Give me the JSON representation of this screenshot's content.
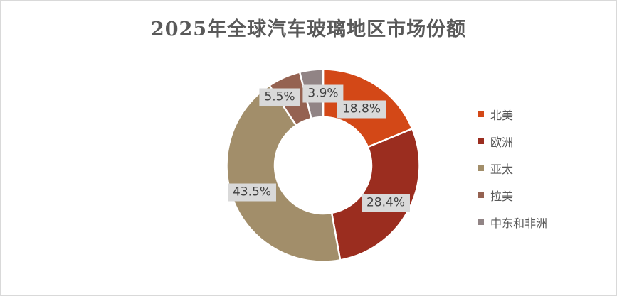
{
  "chart_data": {
    "type": "pie",
    "subtype": "donut",
    "title": "2025年全球汽车玻璃地区市场份额",
    "categories": [
      "北美",
      "欧洲",
      "亚太",
      "拉美",
      "中东和非洲"
    ],
    "values": [
      18.8,
      28.4,
      43.5,
      5.5,
      3.9
    ],
    "data_labels": [
      "18.8%",
      "28.4%",
      "43.5%",
      "5.5%",
      "3.9%"
    ],
    "colors": [
      "#D34817",
      "#9B2D1F",
      "#A28E6A",
      "#956251",
      "#918485"
    ],
    "legend_position": "right",
    "donut_hole_ratio": 0.5,
    "start_angle_deg": 0,
    "direction": "clockwise",
    "label_background": "#D9D9D9",
    "label_text_color": "#404040",
    "title_color": "#595959",
    "legend_text_color": "#595959",
    "slice_separator_color": "#FFFFFF",
    "frame_border_color": "#D9D9D9",
    "background_color": "#FFFFFF"
  }
}
